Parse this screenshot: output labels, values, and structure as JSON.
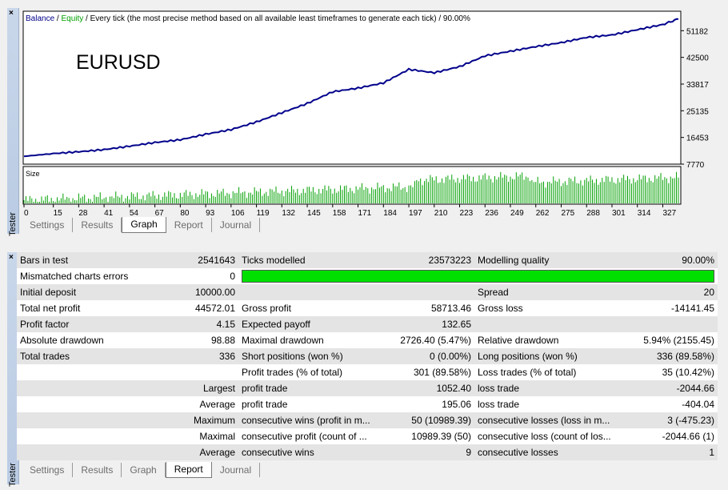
{
  "graph_panel": {
    "legend_balance": "Balance",
    "legend_sep": " / ",
    "legend_equity": "Equity",
    "legend_rest": " / Every tick (the most precise method based on all available least timeframes to generate each tick) / 90.00%",
    "symbol": "EURUSD",
    "y_ticks": [
      "51182",
      "42500",
      "33817",
      "25135",
      "16453",
      "7770"
    ],
    "size_label": "Size",
    "x_ticks": [
      "0",
      "15",
      "28",
      "41",
      "54",
      "67",
      "80",
      "93",
      "106",
      "119",
      "132",
      "145",
      "158",
      "171",
      "184",
      "197",
      "210",
      "223",
      "236",
      "249",
      "262",
      "275",
      "288",
      "301",
      "314",
      "327"
    ],
    "tester_label": "Tester",
    "close": "×",
    "tabs": [
      "Settings",
      "Results",
      "Graph",
      "Report",
      "Journal"
    ],
    "active_tab": "Graph"
  },
  "report_panel": {
    "tester_label": "Tester",
    "close": "×",
    "tabs": [
      "Settings",
      "Results",
      "Graph",
      "Report",
      "Journal"
    ],
    "active_tab": "Report",
    "rows": [
      {
        "l1": "Bars in test",
        "v1": "2541643",
        "l2": "Ticks modelled",
        "v2": "23573223",
        "l3": "Modelling quality",
        "v3": "90.00%"
      },
      {
        "l1": "Mismatched charts errors",
        "v1": "0",
        "bar": true
      },
      {
        "l1": "Initial deposit",
        "v1": "10000.00",
        "l2": "",
        "v2": "",
        "l3": "Spread",
        "v3": "20"
      },
      {
        "l1": "Total net profit",
        "v1": "44572.01",
        "l2": "Gross profit",
        "v2": "58713.46",
        "l3": "Gross loss",
        "v3": "-14141.45"
      },
      {
        "l1": "Profit factor",
        "v1": "4.15",
        "l2": "Expected payoff",
        "v2": "132.65",
        "l3": "",
        "v3": ""
      },
      {
        "l1": "Absolute drawdown",
        "v1": "98.88",
        "l2": "Maximal drawdown",
        "v2": "2726.40 (5.47%)",
        "l3": "Relative drawdown",
        "v3": "5.94% (2155.45)"
      },
      {
        "l1": "Total trades",
        "v1": "336",
        "l2": "Short positions (won %)",
        "v2": "0 (0.00%)",
        "l3": "Long positions (won %)",
        "v3": "336 (89.58%)"
      },
      {
        "l1": "",
        "v1": "",
        "l2": "Profit trades (% of total)",
        "v2": "301 (89.58%)",
        "l3": "Loss trades (% of total)",
        "v3": "35 (10.42%)"
      },
      {
        "l1": "",
        "v1": "Largest",
        "l2": "profit trade",
        "v2": "1052.40",
        "l3": "loss trade",
        "v3": "-2044.66"
      },
      {
        "l1": "",
        "v1": "Average",
        "l2": "profit trade",
        "v2": "195.06",
        "l3": "loss trade",
        "v3": "-404.04"
      },
      {
        "l1": "",
        "v1": "Maximum",
        "l2": "consecutive wins (profit in m...",
        "v2": "50 (10989.39)",
        "l3": "consecutive losses (loss in m...",
        "v3": "3 (-475.23)"
      },
      {
        "l1": "",
        "v1": "Maximal",
        "l2": "consecutive profit (count of ...",
        "v2": "10989.39 (50)",
        "l3": "consecutive loss (count of los...",
        "v3": "-2044.66 (1)"
      },
      {
        "l1": "",
        "v1": "Average",
        "l2": "consecutive wins",
        "v2": "9",
        "l3": "consecutive losses",
        "v3": "1"
      }
    ]
  },
  "chart_data": {
    "type": "line",
    "series": [
      {
        "name": "Balance",
        "color": "#00008b",
        "x": [
          0,
          15,
          28,
          41,
          54,
          67,
          80,
          93,
          106,
          119,
          132,
          145,
          158,
          171,
          184,
          197,
          210,
          223,
          236,
          249,
          262,
          275,
          288,
          301,
          314,
          327,
          335
        ],
        "values": [
          10300,
          11200,
          11800,
          12500,
          13600,
          14800,
          15700,
          17500,
          19000,
          21500,
          24500,
          27500,
          31300,
          32500,
          34200,
          38600,
          37500,
          39500,
          43000,
          44500,
          46000,
          47300,
          49000,
          49800,
          51500,
          53200,
          55000
        ]
      }
    ],
    "y_ticks": [
      51182,
      42500,
      33817,
      25135,
      16453,
      7770
    ],
    "ylim": [
      7770,
      57000
    ],
    "xlim": [
      0,
      335
    ],
    "size_subchart": {
      "label": "Size",
      "color": "#00a000"
    }
  }
}
